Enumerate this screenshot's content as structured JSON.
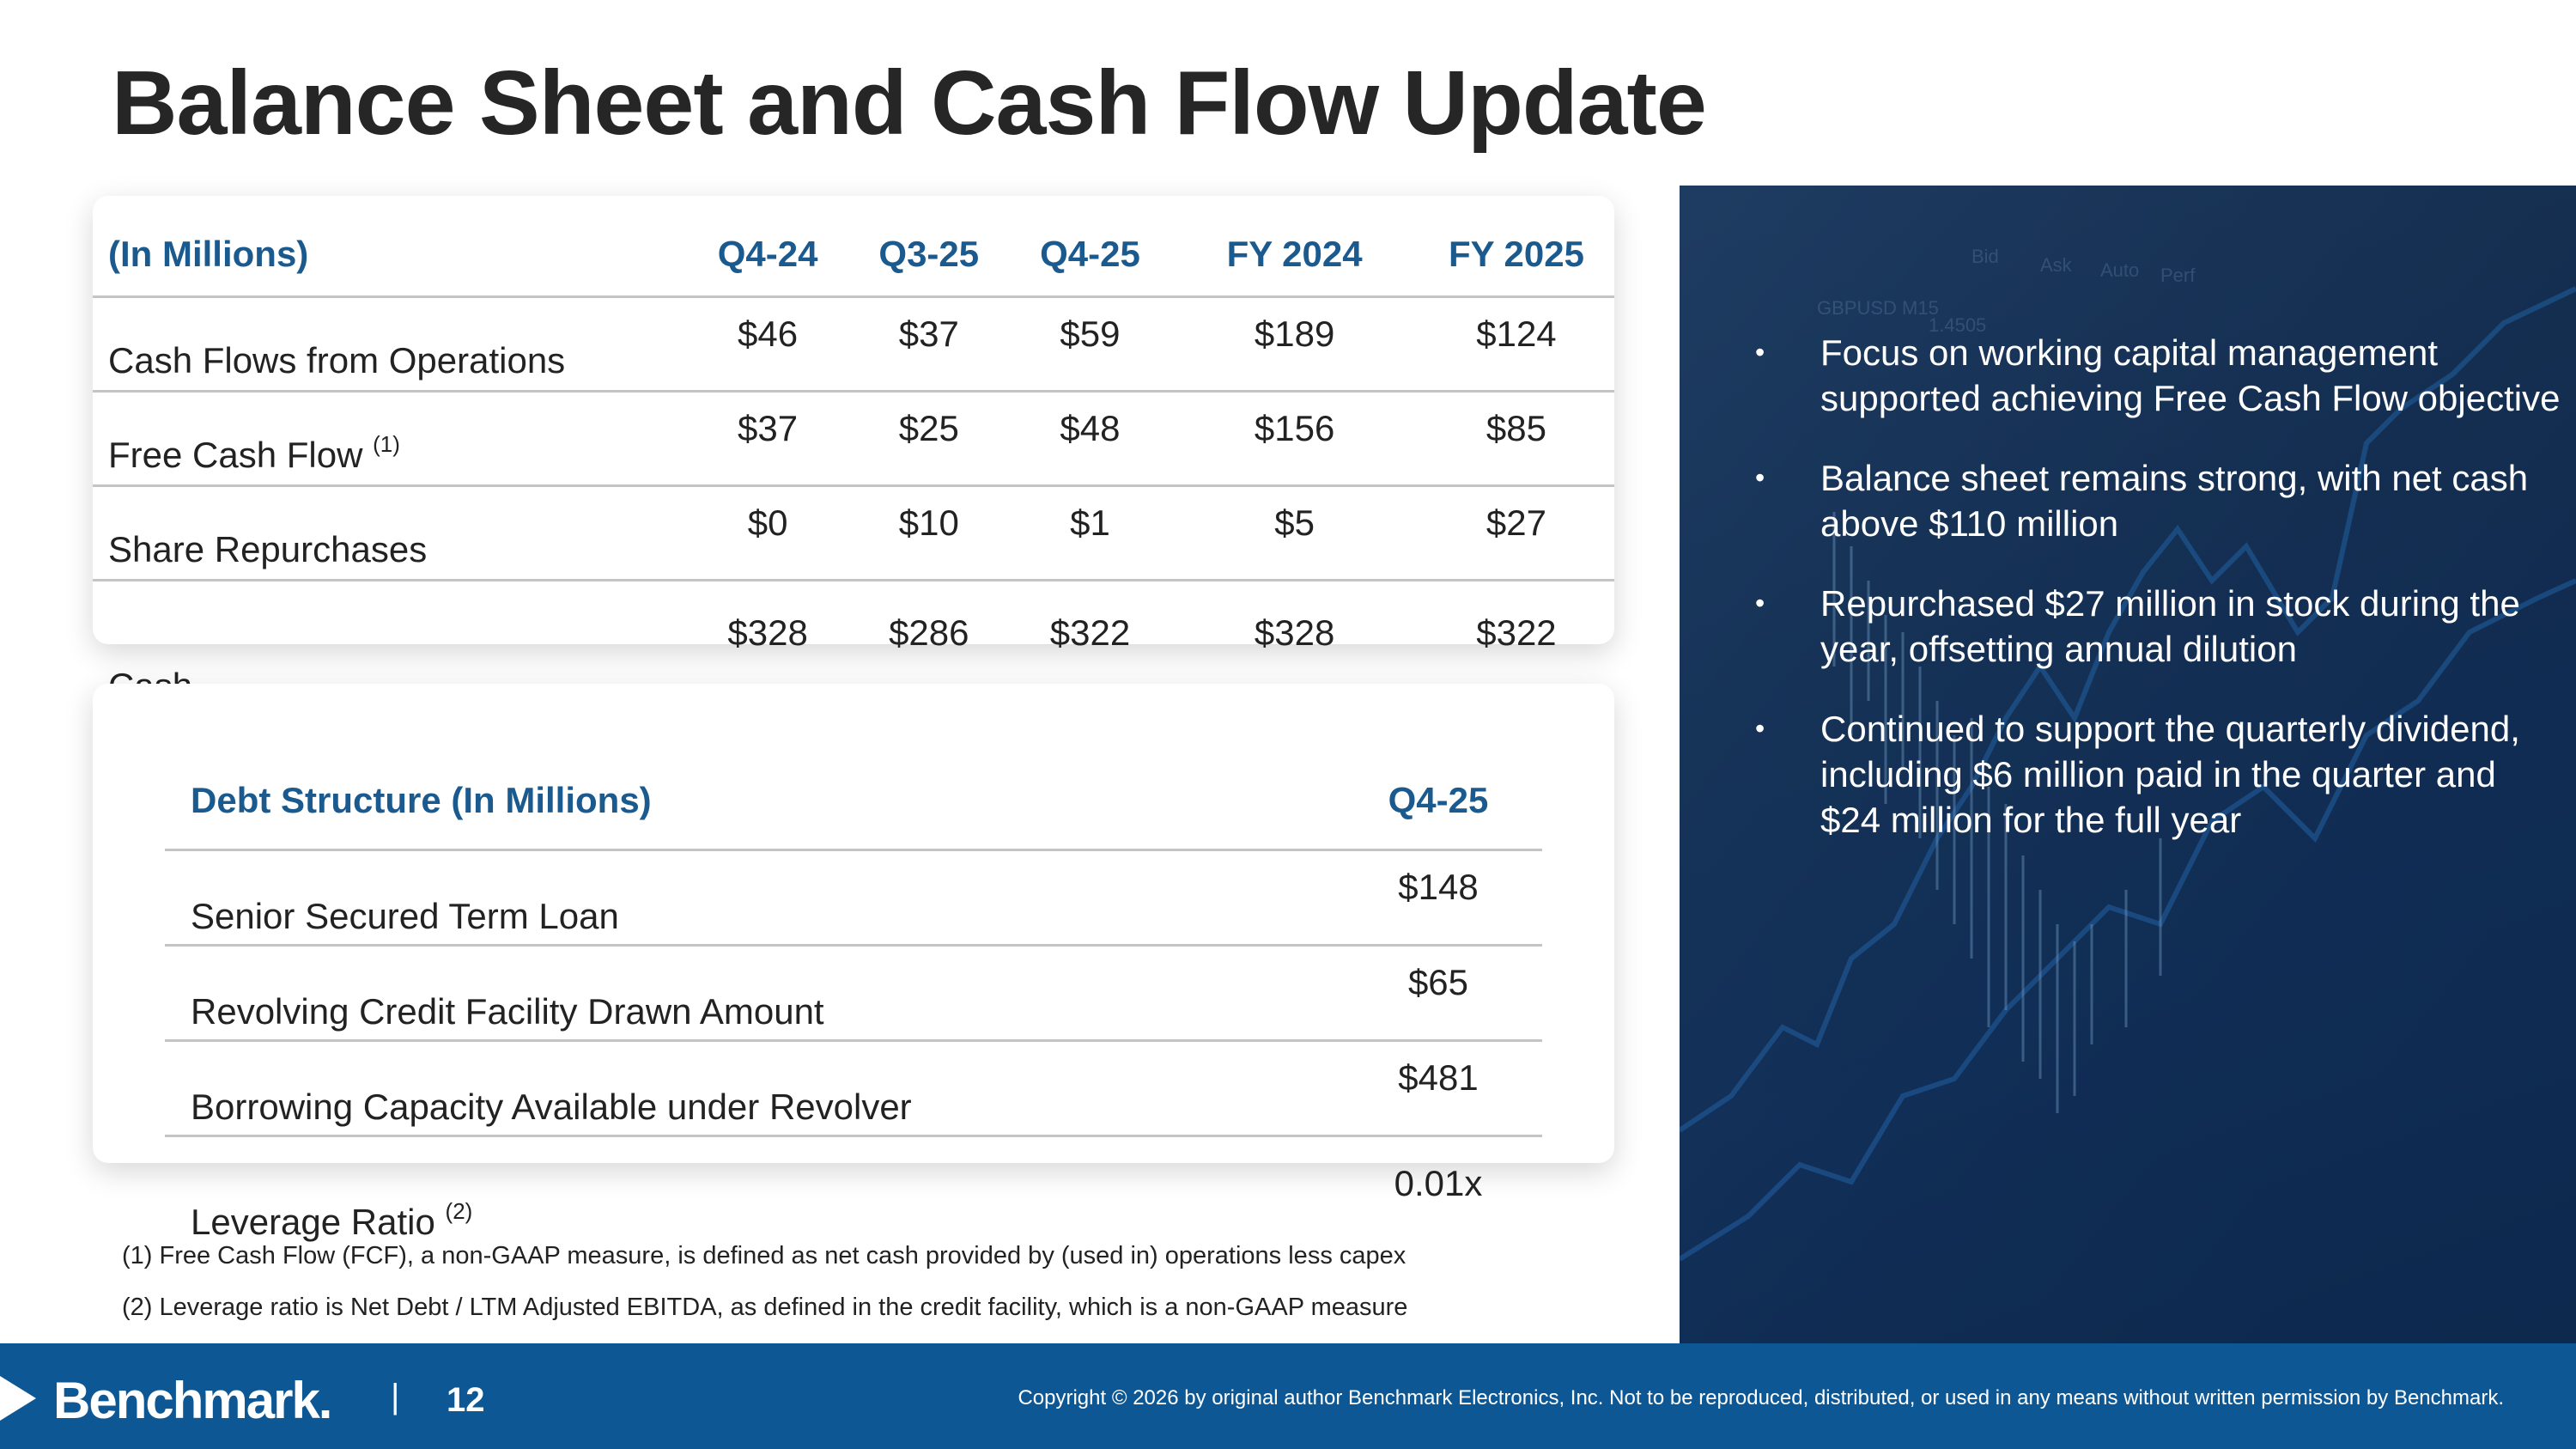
{
  "title": "Balance Sheet and Cash Flow Update",
  "cash_table": {
    "headers": [
      "(In Millions)",
      "Q4-24",
      "Q3-25",
      "Q4-25",
      "FY 2024",
      "FY 2025"
    ],
    "rows": [
      {
        "label": "Cash Flows from Operations",
        "note": "",
        "values": [
          "$46",
          "$37",
          "$59",
          "$189",
          "$124"
        ]
      },
      {
        "label": "Free Cash Flow",
        "note": "(1)",
        "values": [
          "$37",
          "$25",
          "$48",
          "$156",
          "$85"
        ]
      },
      {
        "label": "Share Repurchases",
        "note": "",
        "values": [
          "$0",
          "$10",
          "$1",
          "$5",
          "$27"
        ]
      },
      {
        "label": "Cash",
        "note": "",
        "values": [
          "$328",
          "$286",
          "$322",
          "$328",
          "$322"
        ]
      }
    ]
  },
  "debt_table": {
    "headers": [
      "Debt Structure (In Millions)",
      "Q4-25"
    ],
    "rows": [
      {
        "label": "Senior Secured Term Loan",
        "note": "",
        "value": "$148"
      },
      {
        "label": "Revolving Credit Facility Drawn Amount",
        "note": "",
        "value": "$65"
      },
      {
        "label": "Borrowing Capacity Available under Revolver",
        "note": "",
        "value": "$481"
      },
      {
        "label": "Leverage Ratio",
        "note": "(2)",
        "value": "0.01x"
      }
    ]
  },
  "footnotes": [
    "(1) Free Cash Flow (FCF), a non-GAAP measure, is defined as net cash provided by (used in) operations less capex",
    "(2) Leverage ratio is Net Debt / LTM Adjusted EBITDA, as defined in the credit facility, which is a non-GAAP measure"
  ],
  "bullets": [
    "Focus on working capital management supported achieving Free Cash Flow objective",
    "Balance sheet remains strong, with net cash above $110 million",
    "Repurchased $27 million in stock during the year, offsetting annual dilution",
    "Continued to support the quarterly dividend, including $6 million paid in the quarter and $24 million for the full year"
  ],
  "panel_image_text": [
    "GBPUSD M15",
    "1.4505",
    "Bid",
    "Ask",
    "Auto",
    "Perf"
  ],
  "footer": {
    "logo": "Benchmark.",
    "separator": "|",
    "page_number": "12",
    "copyright": "Copyright © 2026 by original author Benchmark Electronics, Inc. Not to be reproduced, distributed, or used in any means without written permission by Benchmark."
  },
  "colors": {
    "accent": "#1b5a8e",
    "footer_bg": "#0d5894",
    "panel_bg": "#143154"
  }
}
